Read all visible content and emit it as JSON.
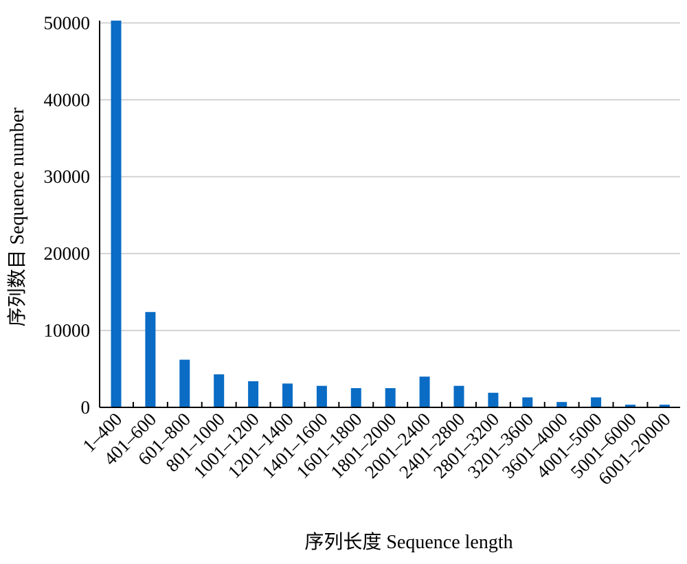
{
  "chart_data": {
    "type": "bar",
    "categories": [
      "1–400",
      "401–600",
      "601–800",
      "801–1000",
      "1001–1200",
      "1201–1400",
      "1401–1600",
      "1601–1800",
      "1801–2000",
      "2001–2400",
      "2401–2800",
      "2801–3200",
      "3201–3600",
      "3601–4000",
      "4001–5000",
      "5001–6000",
      "6001–20000"
    ],
    "values": [
      50300,
      12400,
      6200,
      4300,
      3400,
      3100,
      2800,
      2500,
      2500,
      4000,
      2800,
      1900,
      1300,
      700,
      1300,
      350,
      350
    ],
    "xlabel": "序列长度 Sequence length",
    "ylabel": "序列数目 Sequence number",
    "ylim": [
      0,
      50300
    ],
    "yticks": [
      "0",
      "10000",
      "20000",
      "30000",
      "40000",
      "50000"
    ],
    "ytick_values": [
      0,
      10000,
      20000,
      30000,
      40000,
      50000
    ],
    "grid": "horizontal",
    "bar_color": "#0a6cc4",
    "grid_color": "#d3d3d3"
  }
}
